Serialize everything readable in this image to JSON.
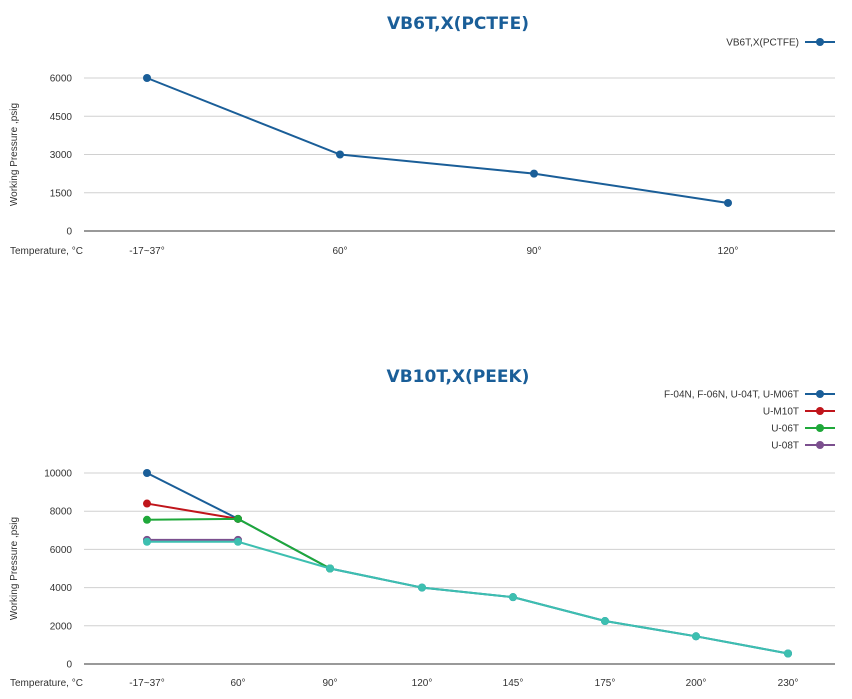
{
  "chart_data": [
    {
      "type": "line",
      "title": "VB6T,X(PCTFE)",
      "xlabel": "Temperature, °C",
      "ylabel": "Working Pressure ,psig",
      "categories": [
        "-17~37°",
        "60°",
        "90°",
        "120°"
      ],
      "yticks": [
        0,
        1500,
        3000,
        4500,
        6000
      ],
      "ylim": [
        0,
        6000
      ],
      "grid": true,
      "legend": "top-right",
      "series": [
        {
          "name": "VB6T,X(PCTFE)",
          "color": "#1a5e98",
          "values": [
            6000,
            3000,
            2250,
            1100
          ]
        }
      ]
    },
    {
      "type": "line",
      "title": "VB10T,X(PEEK)",
      "xlabel": "Temperature, °C",
      "ylabel": "Working Pressure ,psig",
      "categories": [
        "-17~37°",
        "60°",
        "90°",
        "120°",
        "145°",
        "175°",
        "200°",
        "230°"
      ],
      "yticks": [
        0,
        2000,
        4000,
        6000,
        8000,
        10000
      ],
      "ylim": [
        0,
        10000
      ],
      "grid": true,
      "legend": "top-right",
      "series": [
        {
          "name": "F-04N, F-06N, U-04T, U-M06T",
          "color": "#1a5e98",
          "values": [
            10000,
            7600,
            5000,
            4000,
            3500,
            2250,
            1450,
            550
          ]
        },
        {
          "name": "U-M10T",
          "color": "#c0151b",
          "values": [
            8400,
            7600,
            null,
            null,
            null,
            null,
            null,
            null
          ]
        },
        {
          "name": "U-06T",
          "color": "#1fa83a",
          "values": [
            7550,
            7600,
            5000,
            null,
            null,
            null,
            null,
            null
          ]
        },
        {
          "name": "U-08T",
          "color": "#7b4f8e",
          "values": [
            6500,
            6500,
            null,
            null,
            null,
            null,
            null,
            null
          ]
        },
        {
          "name": "",
          "color": "#3dbfb0",
          "values": [
            6400,
            6400,
            5000,
            4000,
            3500,
            2250,
            1450,
            550
          ]
        }
      ]
    }
  ]
}
